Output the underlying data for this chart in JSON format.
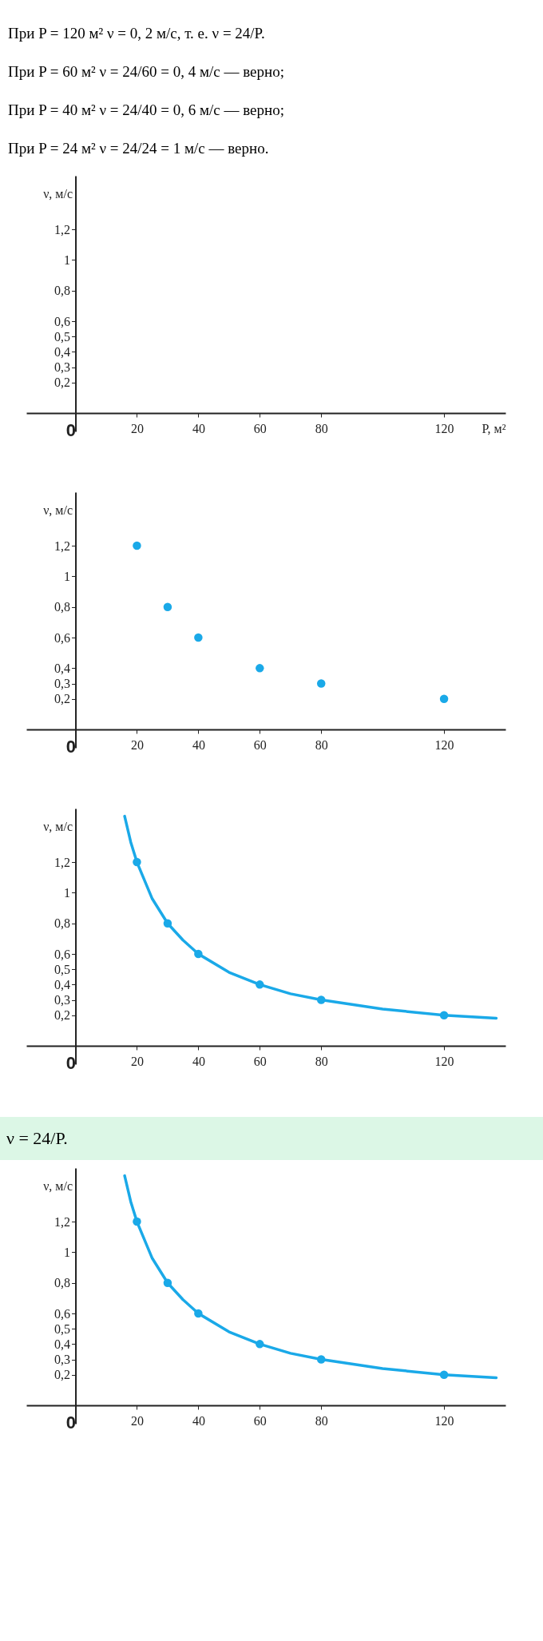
{
  "chart_data": [
    {
      "type": "scatter",
      "annotations": [
        "При P = 120 м² ν = 0, 2 м/с, т. е. ν = 24/P.",
        "При P = 60 м² ν = 24/60 = 0, 4 м/с — верно;",
        "При P = 40 м² ν = 24/40 = 0, 6 м/с — верно;",
        "При P = 24 м² ν = 24/24 = 1 м/с — верно."
      ],
      "xlabel": "P, м²",
      "ylabel": "ν, м/с",
      "xlim": [
        -16,
        140
      ],
      "ylim": [
        -0.12,
        1.55
      ],
      "xticks": [
        0,
        20,
        40,
        60,
        80,
        120
      ],
      "yticks": [
        {
          "value": 0.2,
          "label": "0,2"
        },
        {
          "value": 0.3,
          "label": "0,3"
        },
        {
          "value": 0.4,
          "label": "0,4"
        },
        {
          "value": 0.5,
          "label": "0,5"
        },
        {
          "value": 0.6,
          "label": "0,6"
        },
        {
          "value": 0.8,
          "label": "0,8"
        },
        {
          "value": 1,
          "label": "1"
        },
        {
          "value": 1.2,
          "label": "1,2"
        }
      ]
    },
    {
      "type": "scatter",
      "marker": "circle",
      "ylabel": "ν, м/с",
      "xlim": [
        -16,
        140
      ],
      "ylim": [
        -0.12,
        1.55
      ],
      "xticks": [
        0,
        20,
        40,
        60,
        80,
        120
      ],
      "yticks": [
        {
          "value": 0.2,
          "label": "0,2"
        },
        {
          "value": 0.3,
          "label": "0,3"
        },
        {
          "value": 0.4,
          "label": "0,4"
        },
        {
          "value": 0.6,
          "label": "0,6"
        },
        {
          "value": 0.8,
          "label": "0,8"
        },
        {
          "value": 1,
          "label": "1"
        },
        {
          "value": 1.2,
          "label": "1,2"
        }
      ],
      "series": [
        {
          "color": "#1aa9e8",
          "x": [
            20,
            30,
            40,
            60,
            80,
            120
          ],
          "values": [
            1.2,
            0.8,
            0.6,
            0.4,
            0.3,
            0.2
          ]
        }
      ]
    },
    {
      "type": "line",
      "ylabel": "ν, м/с",
      "xlim": [
        -16,
        140
      ],
      "ylim": [
        -0.12,
        1.55
      ],
      "xticks": [
        0,
        20,
        40,
        60,
        80,
        120
      ],
      "yticks": [
        {
          "value": 0.2,
          "label": "0,2"
        },
        {
          "value": 0.3,
          "label": "0,3"
        },
        {
          "value": 0.4,
          "label": "0,4"
        },
        {
          "value": 0.5,
          "label": "0,5"
        },
        {
          "value": 0.6,
          "label": "0,6"
        },
        {
          "value": 0.8,
          "label": "0,8"
        },
        {
          "value": 1,
          "label": "1"
        },
        {
          "value": 1.2,
          "label": "1,2"
        }
      ],
      "series": [
        {
          "type": "line",
          "color": "#1aa9e8",
          "x": [
            16,
            18,
            20,
            25,
            30,
            35,
            40,
            50,
            60,
            70,
            80,
            100,
            120,
            137
          ],
          "values": [
            1.5,
            1.33,
            1.2,
            0.96,
            0.8,
            0.69,
            0.6,
            0.48,
            0.4,
            0.34,
            0.3,
            0.24,
            0.2,
            0.18
          ]
        },
        {
          "type": "scatter",
          "color": "#1aa9e8",
          "x": [
            20,
            30,
            40,
            60,
            80,
            120
          ],
          "values": [
            1.2,
            0.8,
            0.6,
            0.4,
            0.3,
            0.2
          ]
        }
      ]
    },
    {
      "type": "line",
      "title": "ν = 24/P.",
      "ylabel": "ν, м/с",
      "xlim": [
        -16,
        140
      ],
      "ylim": [
        -0.12,
        1.55
      ],
      "xticks": [
        0,
        20,
        40,
        60,
        80,
        120
      ],
      "yticks": [
        {
          "value": 0.2,
          "label": "0,2"
        },
        {
          "value": 0.3,
          "label": "0,3"
        },
        {
          "value": 0.4,
          "label": "0,4"
        },
        {
          "value": 0.5,
          "label": "0,5"
        },
        {
          "value": 0.6,
          "label": "0,6"
        },
        {
          "value": 0.8,
          "label": "0,8"
        },
        {
          "value": 1,
          "label": "1"
        },
        {
          "value": 1.2,
          "label": "1,2"
        }
      ],
      "series": [
        {
          "type": "line",
          "color": "#1aa9e8",
          "x": [
            16,
            18,
            20,
            25,
            30,
            35,
            40,
            50,
            60,
            70,
            80,
            100,
            120,
            137
          ],
          "values": [
            1.5,
            1.33,
            1.2,
            0.96,
            0.8,
            0.69,
            0.6,
            0.48,
            0.4,
            0.34,
            0.3,
            0.24,
            0.2,
            0.18
          ]
        },
        {
          "type": "scatter",
          "color": "#1aa9e8",
          "x": [
            20,
            30,
            40,
            60,
            80,
            120
          ],
          "values": [
            1.2,
            0.8,
            0.6,
            0.4,
            0.3,
            0.2
          ]
        }
      ]
    }
  ]
}
